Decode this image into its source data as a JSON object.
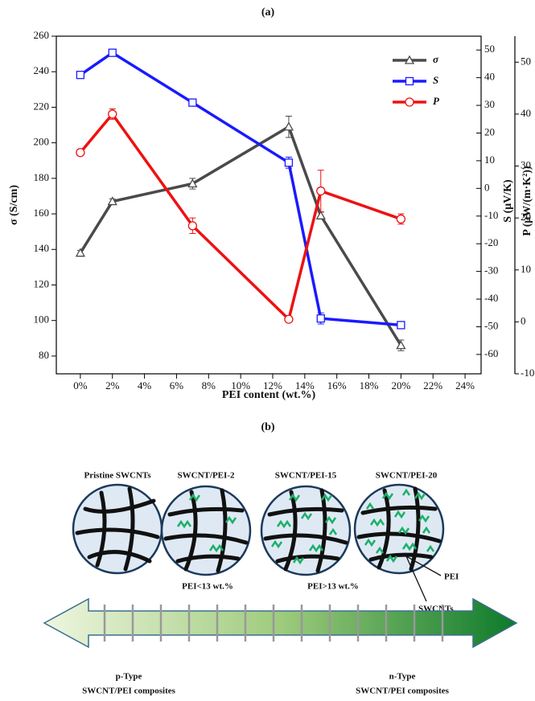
{
  "chart_data": {
    "type": "line",
    "title": "(a)",
    "x_label": "PEI content (wt.%)",
    "y_label": "σ (S/cm)",
    "y2_label": "S (μV/K)",
    "y3_label": "P (μW/(m·K²))",
    "xlim": [
      -1.5,
      25
    ],
    "xticks": [
      {
        "value": 0,
        "label": "0%"
      },
      {
        "value": 2,
        "label": "2%"
      },
      {
        "value": 4,
        "label": "4%"
      },
      {
        "value": 6,
        "label": "6%"
      },
      {
        "value": 8,
        "label": "8%"
      },
      {
        "value": 10,
        "label": "10%"
      },
      {
        "value": 12,
        "label": "12%"
      },
      {
        "value": 14,
        "label": "14%"
      },
      {
        "value": 16,
        "label": "16%"
      },
      {
        "value": 18,
        "label": "18%"
      },
      {
        "value": 20,
        "label": "20%"
      },
      {
        "value": 22,
        "label": "22%"
      },
      {
        "value": 24,
        "label": "24%"
      }
    ],
    "ylim": [
      70,
      260
    ],
    "yticks": [
      80,
      100,
      120,
      140,
      160,
      180,
      200,
      220,
      240,
      260
    ],
    "y2lim": [
      -67,
      55
    ],
    "y2ticks": [
      -60,
      -50,
      -40,
      -30,
      -20,
      -10,
      0,
      10,
      20,
      30,
      40,
      50
    ],
    "y3lim": [
      -10,
      55
    ],
    "y3ticks": [
      -10,
      0,
      10,
      20,
      30,
      40,
      50
    ],
    "x": [
      0,
      2,
      7,
      13,
      15,
      20
    ],
    "legend": "upper right",
    "series": [
      {
        "name": "σ",
        "color": "#4a4a4a",
        "marker": "triangle",
        "axis": "y",
        "values": [
          138,
          167,
          177,
          209,
          159,
          86
        ],
        "errors": [
          1.5,
          1.5,
          3,
          6,
          2,
          3
        ]
      },
      {
        "name": "S",
        "color": "#1a1aff",
        "marker": "square",
        "axis": "y2",
        "values": [
          41,
          49,
          31,
          9.3,
          -47,
          -49.4
        ],
        "errors": [
          1,
          1,
          1,
          2,
          2,
          1
        ]
      },
      {
        "name": "P",
        "color": "#ee1111",
        "marker": "circle",
        "axis": "y3",
        "values": [
          32.6,
          40,
          18.5,
          0.5,
          25.2,
          19.8
        ],
        "errors": [
          0.6,
          1,
          1.5,
          0.5,
          4,
          1
        ]
      }
    ]
  },
  "diagram": {
    "title": "(b)",
    "panels": [
      "Pristine SWCNTs",
      "SWCNT/PEI-2",
      "SWCNT/PEI-15",
      "SWCNT/PEI-20"
    ],
    "callouts": [
      "PEI",
      "SWCNTs"
    ],
    "ranges": [
      "PEI<13 wt.%",
      "PEI>13 wt.%"
    ],
    "left_end": [
      "p-Type",
      "SWCNT/PEI composites"
    ],
    "right_end": [
      "n-Type",
      "SWCNT/PEI composites"
    ]
  }
}
